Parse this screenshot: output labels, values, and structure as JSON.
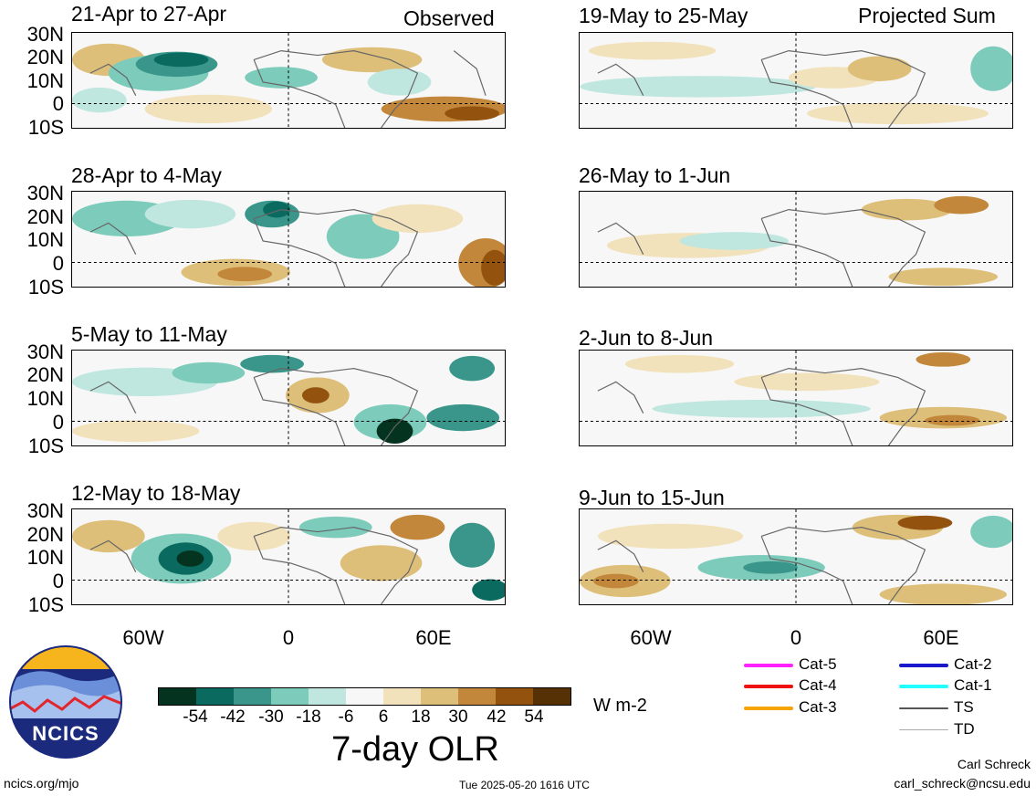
{
  "sections": {
    "observed": "Observed",
    "projected": "Projected Sum"
  },
  "panels": [
    {
      "title": "21-Apr to 27-Apr",
      "group": "observed"
    },
    {
      "title": "28-Apr to 4-May",
      "group": "observed"
    },
    {
      "title": "5-May to 11-May",
      "group": "observed"
    },
    {
      "title": "12-May to 18-May",
      "group": "observed"
    },
    {
      "title": "19-May to 25-May",
      "group": "projected"
    },
    {
      "title": "26-May to 1-Jun",
      "group": "projected"
    },
    {
      "title": "2-Jun to 8-Jun",
      "group": "projected"
    },
    {
      "title": "9-Jun to 15-Jun",
      "group": "projected"
    }
  ],
  "lat_labels": [
    "30N",
    "20N",
    "10N",
    "0",
    "10S"
  ],
  "lon_labels": [
    "60W",
    "0",
    "60E"
  ],
  "colorbar": {
    "colors": [
      "#04331f",
      "#0a6a60",
      "#3a968a",
      "#7ccbbb",
      "#bfe7df",
      "#f7f7f7",
      "#f2e2bc",
      "#ddbf7a",
      "#c2873a",
      "#93530f",
      "#553105"
    ],
    "tick_labels": [
      "-54",
      "-42",
      "-30",
      "-18",
      "-6",
      "6",
      "18",
      "30",
      "42",
      "54"
    ],
    "units": "W m-2",
    "title": "7-day OLR"
  },
  "storm_legend": [
    {
      "label": "Cat-5",
      "color": "#ff22ff"
    },
    {
      "label": "Cat-4",
      "color": "#ee1111"
    },
    {
      "label": "Cat-3",
      "color": "#f7a300"
    },
    {
      "label": "Cat-2",
      "color": "#1a1acc"
    },
    {
      "label": "Cat-1",
      "color": "#22ffff"
    },
    {
      "label": "TS",
      "color": "#555555"
    },
    {
      "label": "TD",
      "color": "#aaaaaa"
    }
  ],
  "logo": {
    "text": "NCICS"
  },
  "footer": {
    "url": "ncics.org/mjo",
    "timestamp": "Tue 2025-05-20 1616 UTC",
    "author": "Carl Schreck",
    "email": "carl_schreck@ncsu.edu"
  }
}
